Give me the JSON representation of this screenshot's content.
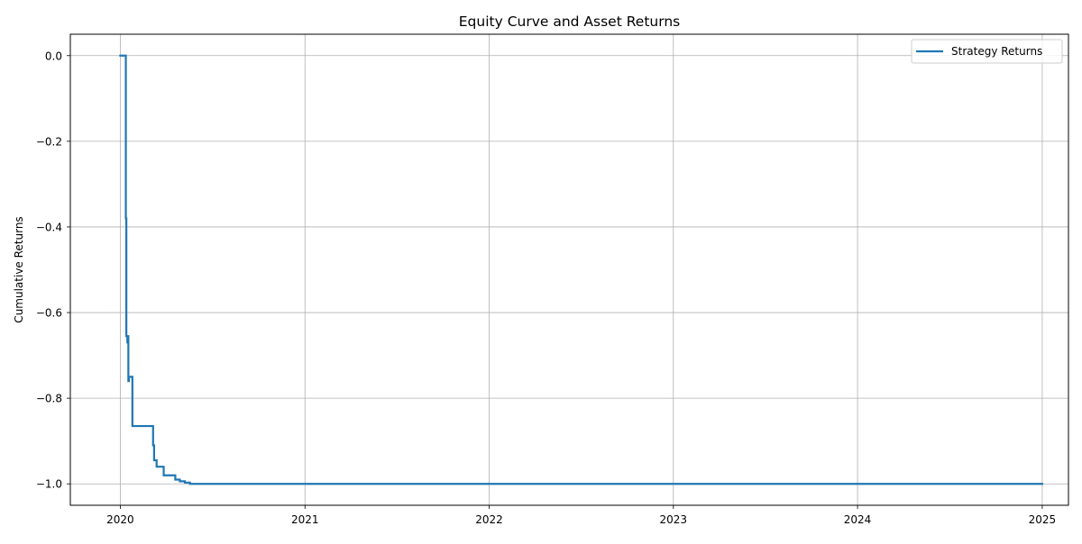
{
  "chart_data": {
    "type": "line",
    "title": "Equity Curve and Asset Returns",
    "xlabel": "",
    "ylabel": "Cumulative Returns",
    "x_axis_type": "date",
    "xlim": [
      "2019-09-24",
      "2025-02-22"
    ],
    "ylim": [
      -1.05,
      0.05
    ],
    "x_ticks": [
      "2020-01-01",
      "2021-01-01",
      "2022-01-01",
      "2023-01-01",
      "2024-01-01",
      "2025-01-01"
    ],
    "x_tick_labels": [
      "2020",
      "2021",
      "2022",
      "2023",
      "2024",
      "2025"
    ],
    "y_ticks": [
      0.0,
      -0.2,
      -0.4,
      -0.6,
      -0.8,
      -1.0
    ],
    "y_tick_labels": [
      "0.0",
      "−0.2",
      "−0.4",
      "−0.6",
      "−0.8",
      "−1.0"
    ],
    "grid": true,
    "legend_position": "top-right",
    "series": [
      {
        "name": "Strategy Returns",
        "color": "#1f77b4",
        "drawstyle": "steps-post",
        "points": [
          [
            "2020-01-01",
            0.0
          ],
          [
            "2020-01-12",
            0.0
          ],
          [
            "2020-01-12",
            -0.38
          ],
          [
            "2020-01-13",
            -0.39
          ],
          [
            "2020-01-13",
            -0.655
          ],
          [
            "2020-01-15",
            -0.67
          ],
          [
            "2020-01-16",
            -0.655
          ],
          [
            "2020-01-17",
            -0.76
          ],
          [
            "2020-01-18",
            -0.75
          ],
          [
            "2020-01-25",
            -0.75
          ],
          [
            "2020-01-25",
            -0.865
          ],
          [
            "2020-03-05",
            -0.865
          ],
          [
            "2020-03-06",
            -0.91
          ],
          [
            "2020-03-08",
            -0.945
          ],
          [
            "2020-03-13",
            -0.96
          ],
          [
            "2020-03-26",
            -0.96
          ],
          [
            "2020-03-27",
            -0.98
          ],
          [
            "2020-04-17",
            -0.98
          ],
          [
            "2020-04-19",
            -0.99
          ],
          [
            "2020-04-28",
            -0.994
          ],
          [
            "2020-05-08",
            -0.997
          ],
          [
            "2020-05-18",
            -1.0
          ],
          [
            "2025-01-01",
            -1.0
          ]
        ]
      }
    ]
  }
}
